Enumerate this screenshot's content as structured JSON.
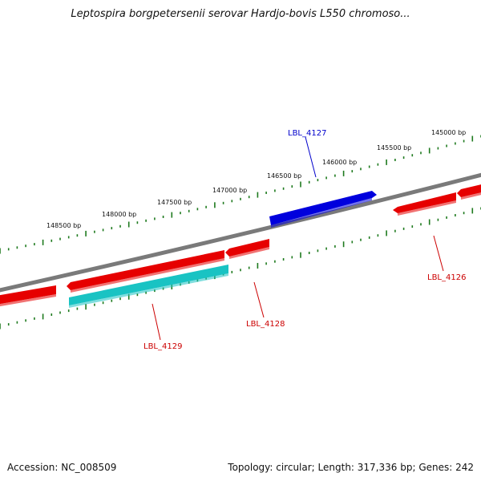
{
  "title": "Leptospira borgpetersenii serovar Hardjo-bovis L550 chromoso...",
  "footer": {
    "accession": "Accession: NC_008509",
    "summary": "Topology: circular; Length: 317,336 bp; Genes: 242"
  },
  "colors": {
    "backbone": "#7a7a7a",
    "tick": "#1e7a1e",
    "gene_red": "#e60000",
    "gene_blue": "#0000dd",
    "gene_cyan": "#19c3c3",
    "label_red": "#cc0000",
    "label_blue": "#0000cc"
  },
  "bp_labels": [
    "145000 bp",
    "145500 bp",
    "146000 bp",
    "146500 bp",
    "147000 bp",
    "147500 bp",
    "148000 bp",
    "148500 bp"
  ],
  "gene_labels": [
    {
      "text": "LBL_4127",
      "color": "blue"
    },
    {
      "text": "LBL_4126",
      "color": "red"
    },
    {
      "text": "LBL_4128",
      "color": "red"
    },
    {
      "text": "LBL_4129",
      "color": "red"
    }
  ]
}
